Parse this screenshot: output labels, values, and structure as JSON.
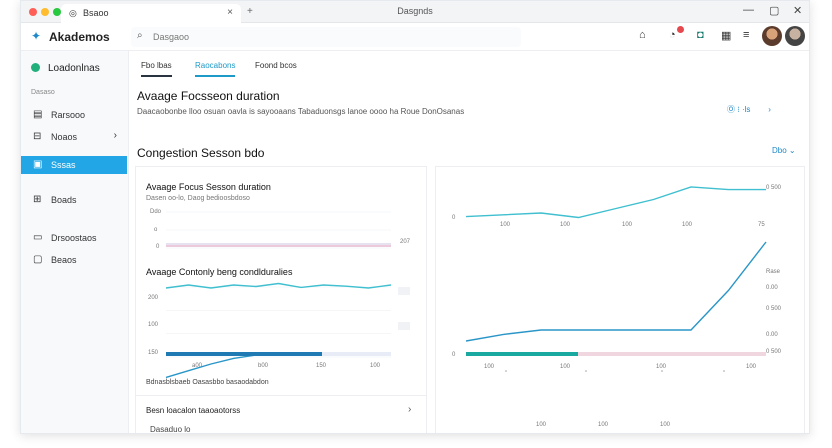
{
  "browser": {
    "tab_title": "Bsaoo",
    "tab_close": "×",
    "new_tab": "+",
    "window_title": "Dasgnds",
    "controls": [
      "—",
      "▢",
      "✕"
    ]
  },
  "appbar": {
    "logo": "Akademos",
    "search_placeholder": "Dasgaoo",
    "icons": [
      "bell-icon",
      "messages-icon",
      "apps-icon",
      "menu-icon"
    ]
  },
  "sidebar": {
    "header": "Loadonlnas",
    "section_label": "Dasaso",
    "items": [
      {
        "label": "Rarsooo",
        "icon": "▤"
      },
      {
        "label": "Noaos",
        "icon": "⊟",
        "chevron": "›"
      },
      {
        "label": "Sssas",
        "icon": "▣",
        "active": true
      },
      {
        "label": "Boads",
        "icon": "⊞"
      },
      {
        "label": "Drsoostaos",
        "icon": "▭"
      },
      {
        "label": "Beaos",
        "icon": "▢"
      }
    ]
  },
  "tabs": [
    {
      "label": "Fbo  lbas"
    },
    {
      "label": "Raocabons"
    },
    {
      "label": "Foond bcos"
    }
  ],
  "page": {
    "title": "Avaage Focsseon duration",
    "subtitle": "Daacaobonbe lloo osuan oavla is sayooaans Tabaduonsgs lanoe oooo ha Roue DonOsanas",
    "meta": "Ⓞ  ⁝  ·ls",
    "meta_arrow": "›"
  },
  "section": {
    "title": "Congestion Sesson bdo",
    "link": "Dbo ⌄"
  },
  "left_card": {
    "title1": "Avaage Focus Sesson duration",
    "subtitle1": "Dasen oo-lo, Daog bedioosbdoso",
    "title2": "Avaage Contonly beng condlduralies",
    "footer": "Bdnasblsbaeb Oasasbbo basaodabdon",
    "row_label": "Besn loacalon taaoaotorss",
    "row_chevron": "›",
    "tag": "Dasaduo lo",
    "chart1_ticks_y": [
      "Ddo",
      "o",
      "0"
    ],
    "chart1_right": "207",
    "chart2_ticks_y": [
      "200",
      "100",
      "150"
    ],
    "chart2_ticks_x": [
      "a00",
      "b00",
      "150",
      "100"
    ]
  },
  "right_card": {
    "ticks_x_top": [
      "100",
      "100",
      "100",
      "100"
    ],
    "ticks_x_bottom": [
      "100",
      "100",
      "100",
      "100"
    ],
    "y_top": "0",
    "y_bottom": "0",
    "right_labels": [
      "0 500",
      "Rase",
      "0.00",
      "0 500",
      "0.00",
      "0 500"
    ],
    "top_right_value": "75"
  },
  "colors": {
    "accent": "#23a6e6",
    "teal_line": "#3fbfcf",
    "blue_line": "#2a96c8",
    "progress_dark": "#1f7ab3",
    "progress_teal": "#1aa9a1",
    "pink_line": "#e6b8cf"
  },
  "chart_data": [
    {
      "type": "line",
      "title": "Avaage Focus Sesson duration",
      "x": [
        0,
        1,
        2,
        3,
        4,
        5,
        6,
        7,
        8,
        9,
        10
      ],
      "series": [
        {
          "values": [
            0,
            0,
            0,
            0,
            0,
            0,
            0,
            0,
            0,
            0,
            0
          ]
        }
      ],
      "ylim": [
        0,
        10
      ]
    },
    {
      "type": "line",
      "title": "Avaage Contonly beng condlduralies",
      "x": [
        0,
        1,
        2,
        3,
        4,
        5,
        6,
        7,
        8,
        9,
        10
      ],
      "series": [
        {
          "values": [
            7,
            8,
            7,
            8,
            7.5,
            8.5,
            7.2,
            8,
            7.6,
            7,
            8
          ]
        },
        {
          "values": [
            1,
            2.2,
            3.4,
            4.4,
            5,
            5.2,
            5.2,
            5.2,
            5.2,
            5.2,
            5.2
          ]
        }
      ],
      "ylim": [
        0,
        10
      ]
    },
    {
      "type": "line",
      "x": [
        0,
        1,
        2,
        3,
        4,
        5,
        6,
        7,
        8
      ],
      "series": [
        {
          "values": [
            1.2,
            1.6,
            2.0,
            1.0,
            3.0,
            5.0,
            7.8,
            7.2,
            7.2
          ]
        }
      ],
      "ylim": [
        0,
        10
      ]
    },
    {
      "type": "line",
      "x": [
        0,
        1,
        2,
        3,
        4,
        5,
        6,
        7,
        8
      ],
      "series": [
        {
          "values": [
            1.0,
            1.6,
            2.0,
            2.0,
            2.0,
            2.0,
            2.0,
            5.6,
            10.0
          ]
        }
      ],
      "ylim": [
        0,
        10
      ]
    }
  ]
}
